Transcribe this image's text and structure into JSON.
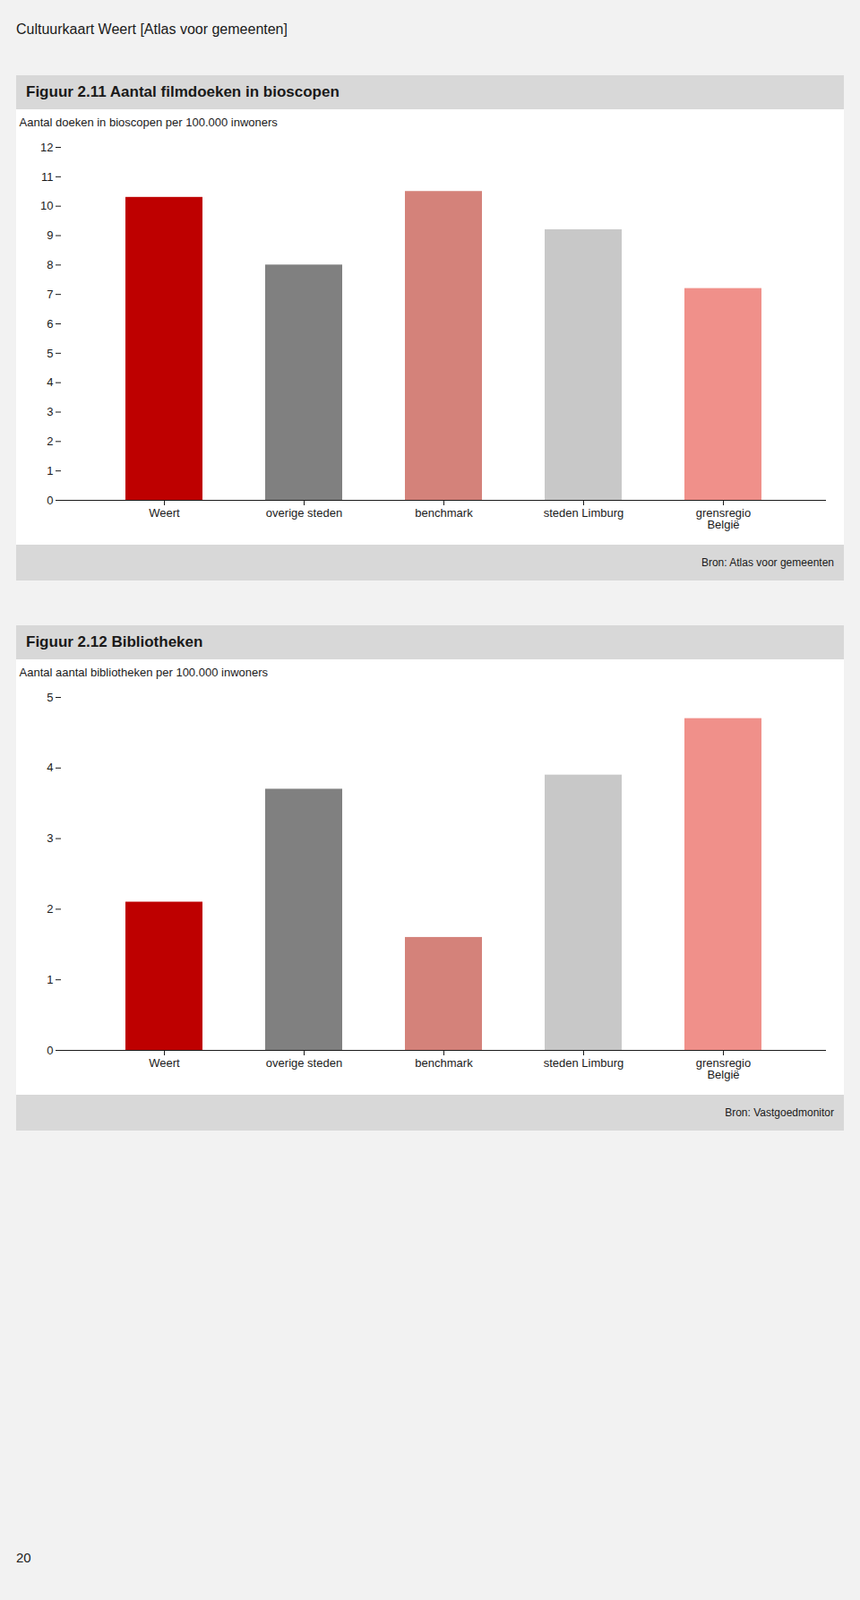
{
  "title": "Cultuurkaart Weert [Atlas voor gemeenten]",
  "annotations": [
    "20"
  ],
  "chart_data": [
    {
      "type": "bar",
      "title": "Figuur 2.11 Aantal filmdoeken in bioscopen",
      "ylabel": "Aantal doeken in bioscopen per 100.000 inwoners",
      "categories": [
        "Weert",
        "overige steden",
        "benchmark",
        "steden Limburg",
        "grensregio\nBelgië"
      ],
      "values": [
        10.3,
        8.0,
        10.5,
        9.2,
        7.2
      ],
      "colors": [
        "#be0000",
        "#808080",
        "#d4827a",
        "#c8c8c8",
        "#f0908a"
      ],
      "ylim": [
        0,
        12
      ],
      "yticks": [
        0,
        1,
        2,
        3,
        4,
        5,
        6,
        7,
        8,
        9,
        10,
        11,
        12
      ],
      "grid": false,
      "annotations": [
        "Bron: Atlas voor gemeenten"
      ]
    },
    {
      "type": "bar",
      "title": "Figuur 2.12 Bibliotheken",
      "ylabel": "Aantal aantal bibliotheken per 100.000 inwoners",
      "categories": [
        "Weert",
        "overige steden",
        "benchmark",
        "steden Limburg",
        "grensregio\nBelgië"
      ],
      "values": [
        2.1,
        3.7,
        1.6,
        3.9,
        4.7
      ],
      "colors": [
        "#be0000",
        "#808080",
        "#d4827a",
        "#c8c8c8",
        "#f0908a"
      ],
      "ylim": [
        0,
        5
      ],
      "yticks": [
        0,
        1,
        2,
        3,
        4,
        5
      ],
      "grid": false,
      "annotations": [
        "Bron: Vastgoedmonitor"
      ]
    }
  ]
}
